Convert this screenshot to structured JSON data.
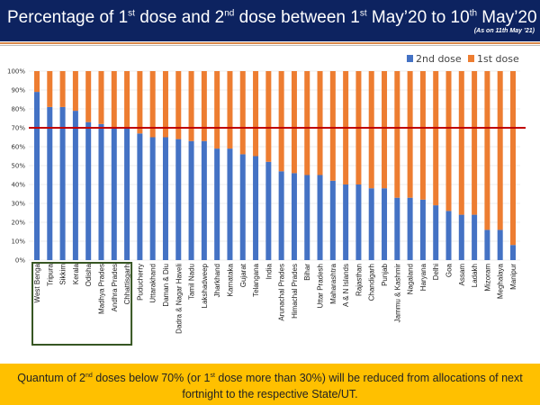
{
  "header": {
    "title_parts": [
      "Percentage of 1",
      "st",
      " dose and 2",
      "nd",
      " dose between 1",
      "st",
      " May’20 to 10",
      "th",
      " May’20"
    ],
    "as_of": "(As on 11th May ’21)"
  },
  "footer": {
    "line_parts": [
      "Quantum of 2",
      "nd",
      " doses below 70% (or 1",
      "st",
      " dose more than 30%) will be reduced from allocations of next fortnight to the respective State/UT."
    ]
  },
  "chart_data": {
    "type": "bar",
    "stacked": true,
    "title": "",
    "xlabel": "",
    "ylabel": "",
    "ylim": [
      0,
      100
    ],
    "yticks": [
      "0%",
      "10%",
      "20%",
      "30%",
      "40%",
      "50%",
      "60%",
      "70%",
      "80%",
      "90%",
      "100%"
    ],
    "legend_position": "top-right",
    "grid": true,
    "reference_line": {
      "value": 70,
      "color": "#c00000"
    },
    "highlight_box_categories": [
      "West Benga",
      "Tripura",
      "Sikkim",
      "Kerala",
      "Odisha",
      "Madhya Prades",
      "Andhra Prades",
      "Chhattisgarh"
    ],
    "categories": [
      "West Benga",
      "Tripura",
      "Sikkim",
      "Kerala",
      "Odisha",
      "Madhya Prades",
      "Andhra Prades",
      "Chhattisgarh",
      "Puducherry",
      "Uttarakhand",
      "Daman & Diu",
      "Dadra & Nagar Haveli",
      "Tamil Nadu",
      "Lakshadweep",
      "Jharkhand",
      "Karnataka",
      "Gujarat",
      "Telangana",
      "India",
      "Arunachal Prades",
      "Himachal Prades",
      "Bihar",
      "Uttar Pradesh",
      "Maharashtra",
      "A & N Islands",
      "Rajasthan",
      "Chandigarh",
      "Punjab",
      "Jammu & Kashmir",
      "Nagaland",
      "Haryana",
      "Delhi",
      "Goa",
      "Assam",
      "Ladakh",
      "Mizoram",
      "Meghalaya",
      "Manipur"
    ],
    "series": [
      {
        "name": "2nd dose",
        "color": "#4472c4",
        "values": [
          89,
          81,
          81,
          79,
          73,
          72,
          70,
          70,
          67,
          65,
          65,
          64,
          63,
          63,
          59,
          59,
          56,
          55,
          52,
          47,
          46,
          45,
          45,
          42,
          40,
          40,
          38,
          38,
          33,
          33,
          32,
          29,
          26,
          24,
          24,
          16,
          16,
          8
        ]
      },
      {
        "name": "1st dose",
        "color": "#ed7d31",
        "values": [
          11,
          19,
          19,
          21,
          27,
          28,
          30,
          30,
          33,
          35,
          35,
          36,
          37,
          37,
          41,
          41,
          44,
          45,
          48,
          53,
          54,
          55,
          55,
          58,
          60,
          60,
          62,
          62,
          67,
          67,
          68,
          71,
          74,
          76,
          76,
          84,
          84,
          92
        ]
      }
    ]
  }
}
